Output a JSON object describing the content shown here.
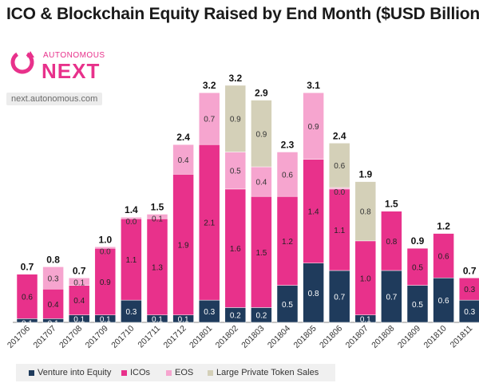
{
  "page": {
    "title": "ICO & Blockchain Equity Raised by End Month ($USD Billion)"
  },
  "logo": {
    "top_text": "AUTONOMOUS",
    "main_text": "NEXT",
    "url": "next.autonomous.com"
  },
  "chart_data": {
    "type": "bar",
    "stacked": true,
    "title": "ICO & Blockchain Equity Raised by End Month ($USD Billion)",
    "categories": [
      "201706",
      "201707",
      "201708",
      "201709",
      "201710",
      "201711",
      "201712",
      "201801",
      "201802",
      "201803",
      "201804",
      "201805",
      "201806",
      "201807",
      "201808",
      "201809",
      "201810",
      "201811"
    ],
    "totals": [
      "0.7",
      "0.8",
      "0.7",
      "1.0",
      "1.4",
      "1.5",
      "2.4",
      "3.2",
      "3.2",
      "2.9",
      "2.3",
      "3.1",
      "2.4",
      "1.9",
      "1.5",
      "0.9",
      "1.2",
      "0.7"
    ],
    "series": [
      {
        "name": "Venture into Equity",
        "color": "#1f3b5c",
        "values": [
          0.05,
          0.05,
          0.1,
          0.1,
          0.3,
          0.1,
          0.1,
          0.3,
          0.2,
          0.2,
          0.5,
          0.8,
          0.7,
          0.1,
          0.7,
          0.5,
          0.6,
          0.3
        ],
        "labels": [
          "0.1",
          "0.1",
          "0.1",
          "0.1",
          "0.3",
          "0.1",
          "0.1",
          "0.3",
          "0.2",
          "0.2",
          "0.5",
          "0.8",
          "0.7",
          "0.1",
          "0.7",
          "0.5",
          "0.6",
          "0.3"
        ]
      },
      {
        "name": "ICOs",
        "color": "#e8318b",
        "values": [
          0.6,
          0.4,
          0.4,
          0.9,
          1.1,
          1.3,
          1.9,
          2.1,
          1.6,
          1.5,
          1.2,
          1.4,
          1.1,
          1.0,
          0.8,
          0.5,
          0.6,
          0.3
        ],
        "labels": [
          "0.6",
          "0.4",
          "0.4",
          "0.9",
          "1.1",
          "1.3",
          "1.9",
          "2.1",
          "1.6",
          "1.5",
          "1.2",
          "1.4",
          "1.1",
          "1.0",
          "0.8",
          "0.5",
          "0.6",
          "0.3"
        ]
      },
      {
        "name": "EOS",
        "color": "#f6a5cf",
        "values": [
          0,
          0.3,
          0.1,
          0.02,
          0.02,
          0.06,
          0.4,
          0.7,
          0.5,
          0.4,
          0.6,
          0.9,
          0.02,
          0,
          0,
          0,
          0,
          0
        ],
        "labels": [
          "",
          "0.3",
          "0.1",
          "0.0",
          "0.0",
          "0.1",
          "0.4",
          "0.7",
          "0.5",
          "0.4",
          "0.6",
          "0.9",
          "0.0",
          "",
          "",
          "",
          "",
          ""
        ]
      },
      {
        "name": "Large Private Token Sales",
        "color": "#d4d0b8",
        "values": [
          0,
          0,
          0,
          0,
          0,
          0,
          0,
          0,
          0.9,
          0.9,
          0,
          0,
          0.6,
          0.8,
          0,
          0,
          0,
          0
        ],
        "labels": [
          "",
          "",
          "",
          "",
          "",
          "",
          "",
          "",
          "0.9",
          "0.9",
          "",
          "",
          "0.6",
          "0.8",
          "",
          "",
          "",
          ""
        ]
      }
    ],
    "ylim": [
      0,
      3.35
    ],
    "grid": false,
    "legend_position": "bottom"
  }
}
